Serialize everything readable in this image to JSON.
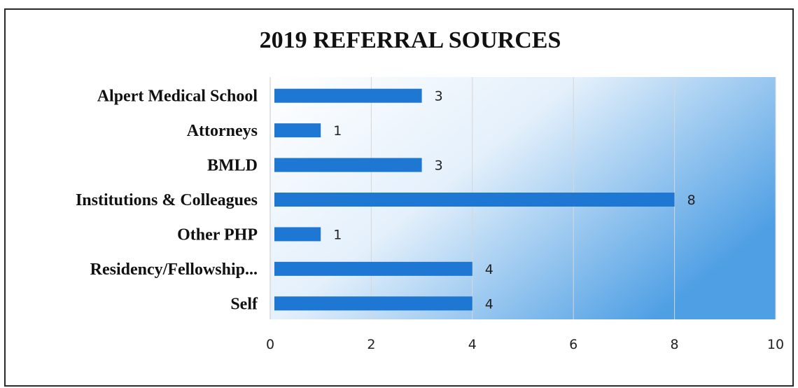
{
  "chart_data": {
    "type": "bar",
    "orientation": "horizontal",
    "title": "2019 REFERRAL SOURCES",
    "categories": [
      "Alpert Medical School",
      "Attorneys",
      "BMLD",
      "Institutions & Colleagues",
      "Other PHP",
      "Residency/Fellowship...",
      "Self"
    ],
    "values": [
      3,
      1,
      3,
      8,
      1,
      4,
      4
    ],
    "xlim": [
      0,
      10
    ],
    "xticks": [
      0,
      2,
      4,
      6,
      8,
      10
    ],
    "xlabel": "",
    "ylabel": "",
    "grid": true,
    "legend": "none",
    "bar_color": "#1f77d4",
    "background_gradient": [
      "#ffffff",
      "#4f9fe4"
    ]
  }
}
